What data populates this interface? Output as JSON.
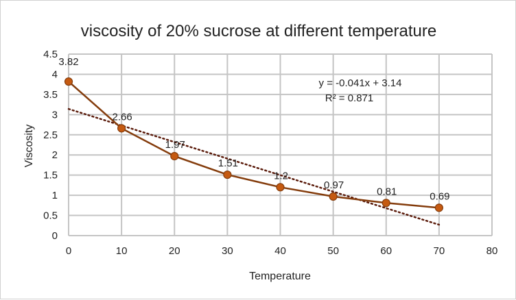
{
  "chart_data": {
    "type": "line",
    "title": "viscosity of 20% sucrose at different temperature",
    "xlabel": "Temperature",
    "ylabel": "Viscosity",
    "x": [
      0,
      10,
      20,
      30,
      40,
      50,
      60,
      70
    ],
    "series": [
      {
        "values": [
          3.82,
          2.66,
          1.97,
          1.51,
          1.2,
          0.97,
          0.81,
          0.69
        ],
        "labels": [
          "3.82",
          "2.66",
          "1.97",
          "1.51",
          "1.2",
          "0.97",
          "0.81",
          "0.69"
        ],
        "color": "#843c0c",
        "marker_color": "#c55a11"
      }
    ],
    "trendline": {
      "type": "linear",
      "slope": -0.041,
      "intercept": 3.14,
      "equation": "y = -0.041x + 3.14",
      "r2": "R² = 0.871",
      "style": "dotted",
      "color": "#5a1a0a"
    },
    "xlim": [
      0,
      80
    ],
    "ylim": [
      0,
      4.5
    ],
    "xticks": [
      0,
      10,
      20,
      30,
      40,
      50,
      60,
      70,
      80
    ],
    "yticks": [
      0,
      0.5,
      1,
      1.5,
      2,
      2.5,
      3,
      3.5,
      4,
      4.5
    ],
    "grid": true,
    "legend": "none"
  }
}
